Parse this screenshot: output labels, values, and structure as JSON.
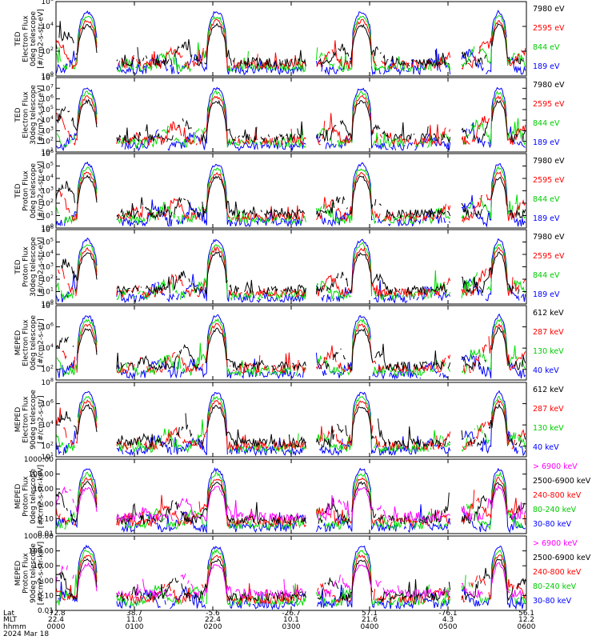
{
  "chart_data": [
    {
      "type": "line",
      "ylabel": [
        "TED",
        "Electron Flux",
        "0deg telescope",
        "[#/cm2-s-str-eV]"
      ],
      "yscale": "log",
      "ylim": [
        1,
        1000000
      ],
      "yticks": [
        {
          "exp": "6",
          "v": 1000000
        },
        {
          "exp": "4",
          "v": 10000
        },
        {
          "exp": "2",
          "v": 100
        },
        {
          "exp": "0",
          "v": 1
        }
      ],
      "legend": [
        "7980 eV",
        "2595 eV",
        "844 eV",
        "189 eV"
      ],
      "series_colors": [
        "#000000",
        "#ff0000",
        "#00dd00",
        "#0000ff"
      ]
    },
    {
      "type": "line",
      "ylabel": [
        "TED",
        "Electron Flux",
        "30deg telescope",
        "[#/cm2-s-str-eV]"
      ],
      "yscale": "log",
      "ylim": [
        10,
        100000000
      ],
      "yticks": [
        {
          "exp": "8",
          "v": 100000000
        },
        {
          "exp": "7",
          "v": 10000000
        },
        {
          "exp": "6",
          "v": 1000000
        },
        {
          "exp": "5",
          "v": 100000
        },
        {
          "exp": "4",
          "v": 10000
        },
        {
          "exp": "3",
          "v": 1000
        },
        {
          "exp": "2",
          "v": 100
        },
        {
          "exp": "1",
          "v": 10
        }
      ],
      "legend": [
        "7980 eV",
        "2595 eV",
        "844 eV",
        "189 eV"
      ],
      "series_colors": [
        "#000000",
        "#ff0000",
        "#00dd00",
        "#0000ff"
      ]
    },
    {
      "type": "line",
      "ylabel": [
        "TED",
        "Proton Flux",
        "0deg telescope",
        "[#/cm2-s-str-eV]"
      ],
      "yscale": "log",
      "ylim": [
        1,
        1000000
      ],
      "yticks": [
        {
          "exp": "6",
          "v": 1000000
        },
        {
          "exp": "5",
          "v": 100000
        },
        {
          "exp": "4",
          "v": 10000
        },
        {
          "exp": "3",
          "v": 1000
        },
        {
          "exp": "2",
          "v": 100
        },
        {
          "exp": "1",
          "v": 10
        },
        {
          "exp": "0",
          "v": 1
        }
      ],
      "legend": [
        "7980 eV",
        "2595 eV",
        "844 eV",
        "189 eV"
      ],
      "series_colors": [
        "#000000",
        "#ff0000",
        "#00dd00",
        "#0000ff"
      ]
    },
    {
      "type": "line",
      "ylabel": [
        "TED",
        "Proton Flux",
        "30deg telescope",
        "[#/cm2-s-str-eV]"
      ],
      "yscale": "log",
      "ylim": [
        1,
        1000000
      ],
      "yticks": [
        {
          "exp": "6",
          "v": 1000000
        },
        {
          "exp": "5",
          "v": 100000
        },
        {
          "exp": "4",
          "v": 10000
        },
        {
          "exp": "3",
          "v": 1000
        },
        {
          "exp": "2",
          "v": 100
        },
        {
          "exp": "1",
          "v": 10
        },
        {
          "exp": "0",
          "v": 1
        }
      ],
      "legend": [
        "7980 eV",
        "2595 eV",
        "844 eV",
        "189 eV"
      ],
      "series_colors": [
        "#000000",
        "#ff0000",
        "#00dd00",
        "#0000ff"
      ]
    },
    {
      "type": "line",
      "ylabel": [
        "MEPED",
        "Electron Flux",
        "0deg telescope",
        "[#/cm2-s-str]"
      ],
      "yscale": "log",
      "ylim": [
        10,
        100000000
      ],
      "yticks": [
        {
          "exp": "8",
          "v": 100000000
        },
        {
          "exp": "6",
          "v": 1000000
        },
        {
          "exp": "4",
          "v": 10000
        },
        {
          "exp": "2",
          "v": 100
        }
      ],
      "legend": [
        "612 keV",
        "287 keV",
        "130 keV",
        "40 keV"
      ],
      "series_colors": [
        "#000000",
        "#ff0000",
        "#00dd00",
        "#0000ff"
      ]
    },
    {
      "type": "line",
      "ylabel": [
        "MEPED",
        "Electron Flux",
        "90deg telescope",
        "[#/cm2-s-str]"
      ],
      "yscale": "log",
      "ylim": [
        10,
        100000000
      ],
      "yticks": [
        {
          "exp": "8",
          "v": 100000000
        },
        {
          "exp": "6",
          "v": 1000000
        },
        {
          "exp": "4",
          "v": 10000
        },
        {
          "exp": "2",
          "v": 100
        },
        {
          "exp": "1",
          "v": 10
        }
      ],
      "legend": [
        "612 keV",
        "287 keV",
        "130 keV",
        "40 keV"
      ],
      "series_colors": [
        "#000000",
        "#ff0000",
        "#00dd00",
        "#0000ff"
      ]
    },
    {
      "type": "line",
      "ylabel": [
        "MEPED",
        "Proton Flux",
        "0deg telescope",
        "[#/cm2-s-str-keV]"
      ],
      "yscale": "log",
      "ylim": [
        0.01,
        1000
      ],
      "yticks": [
        {
          "label": "1000.00",
          "v": 1000
        },
        {
          "label": "100.00",
          "v": 100
        },
        {
          "label": "10.00",
          "v": 10
        },
        {
          "label": "1.00",
          "v": 1
        },
        {
          "label": "0.10",
          "v": 0.1
        },
        {
          "label": "0.01",
          "v": 0.01
        }
      ],
      "legend": [
        "> 6900 keV",
        "2500-6900 keV",
        "240-800 keV",
        "80-240 keV",
        "30-80 keV"
      ],
      "series_colors": [
        "#ff00ff",
        "#000000",
        "#ff0000",
        "#00dd00",
        "#0000ff"
      ]
    },
    {
      "type": "line",
      "ylabel": [
        "MEPED",
        "Proton Flux",
        "90deg telescope",
        "[#/cm2-s-str-keV]"
      ],
      "yscale": "log",
      "ylim": [
        0.01,
        1000
      ],
      "yticks": [
        {
          "label": "1000.00",
          "v": 1000
        },
        {
          "label": "100.00",
          "v": 100
        },
        {
          "label": "10.00",
          "v": 10
        },
        {
          "label": "1.00",
          "v": 1
        },
        {
          "label": "0.10",
          "v": 0.1
        },
        {
          "label": "0.01",
          "v": 0.01
        }
      ],
      "legend": [
        "> 6900 keV",
        "2500-6900 keV",
        "240-800 keV",
        "80-240 keV",
        "30-80 keV"
      ],
      "series_colors": [
        "#ff00ff",
        "#000000",
        "#ff0000",
        "#00dd00",
        "#0000ff"
      ]
    }
  ],
  "x_axis": {
    "rows": [
      {
        "label": "Lat",
        "values": [
          "-72.8",
          "38.7",
          "-5.6",
          "-26.7",
          "57.1",
          "-76.1",
          "56.1"
        ]
      },
      {
        "label": "MLT",
        "values": [
          "22.4",
          "11.0",
          "22.4",
          "10.1",
          "21.6",
          "4.3",
          "12.2"
        ]
      },
      {
        "label": "hhmm",
        "values": [
          "0000",
          "0100",
          "0200",
          "0300",
          "0400",
          "0500",
          "0600"
        ]
      }
    ],
    "date": "2024 Mar 18",
    "range_minutes": [
      0,
      360
    ]
  },
  "signal": {
    "passes": [
      {
        "c": 24,
        "w": 7.5
      },
      {
        "c": 123,
        "w": 7.5
      },
      {
        "c": 234,
        "w": 7.5
      },
      {
        "c": 339,
        "w": 6
      }
    ],
    "gaps": [
      [
        32,
        46
      ],
      [
        192,
        199
      ],
      [
        302,
        310
      ]
    ]
  }
}
